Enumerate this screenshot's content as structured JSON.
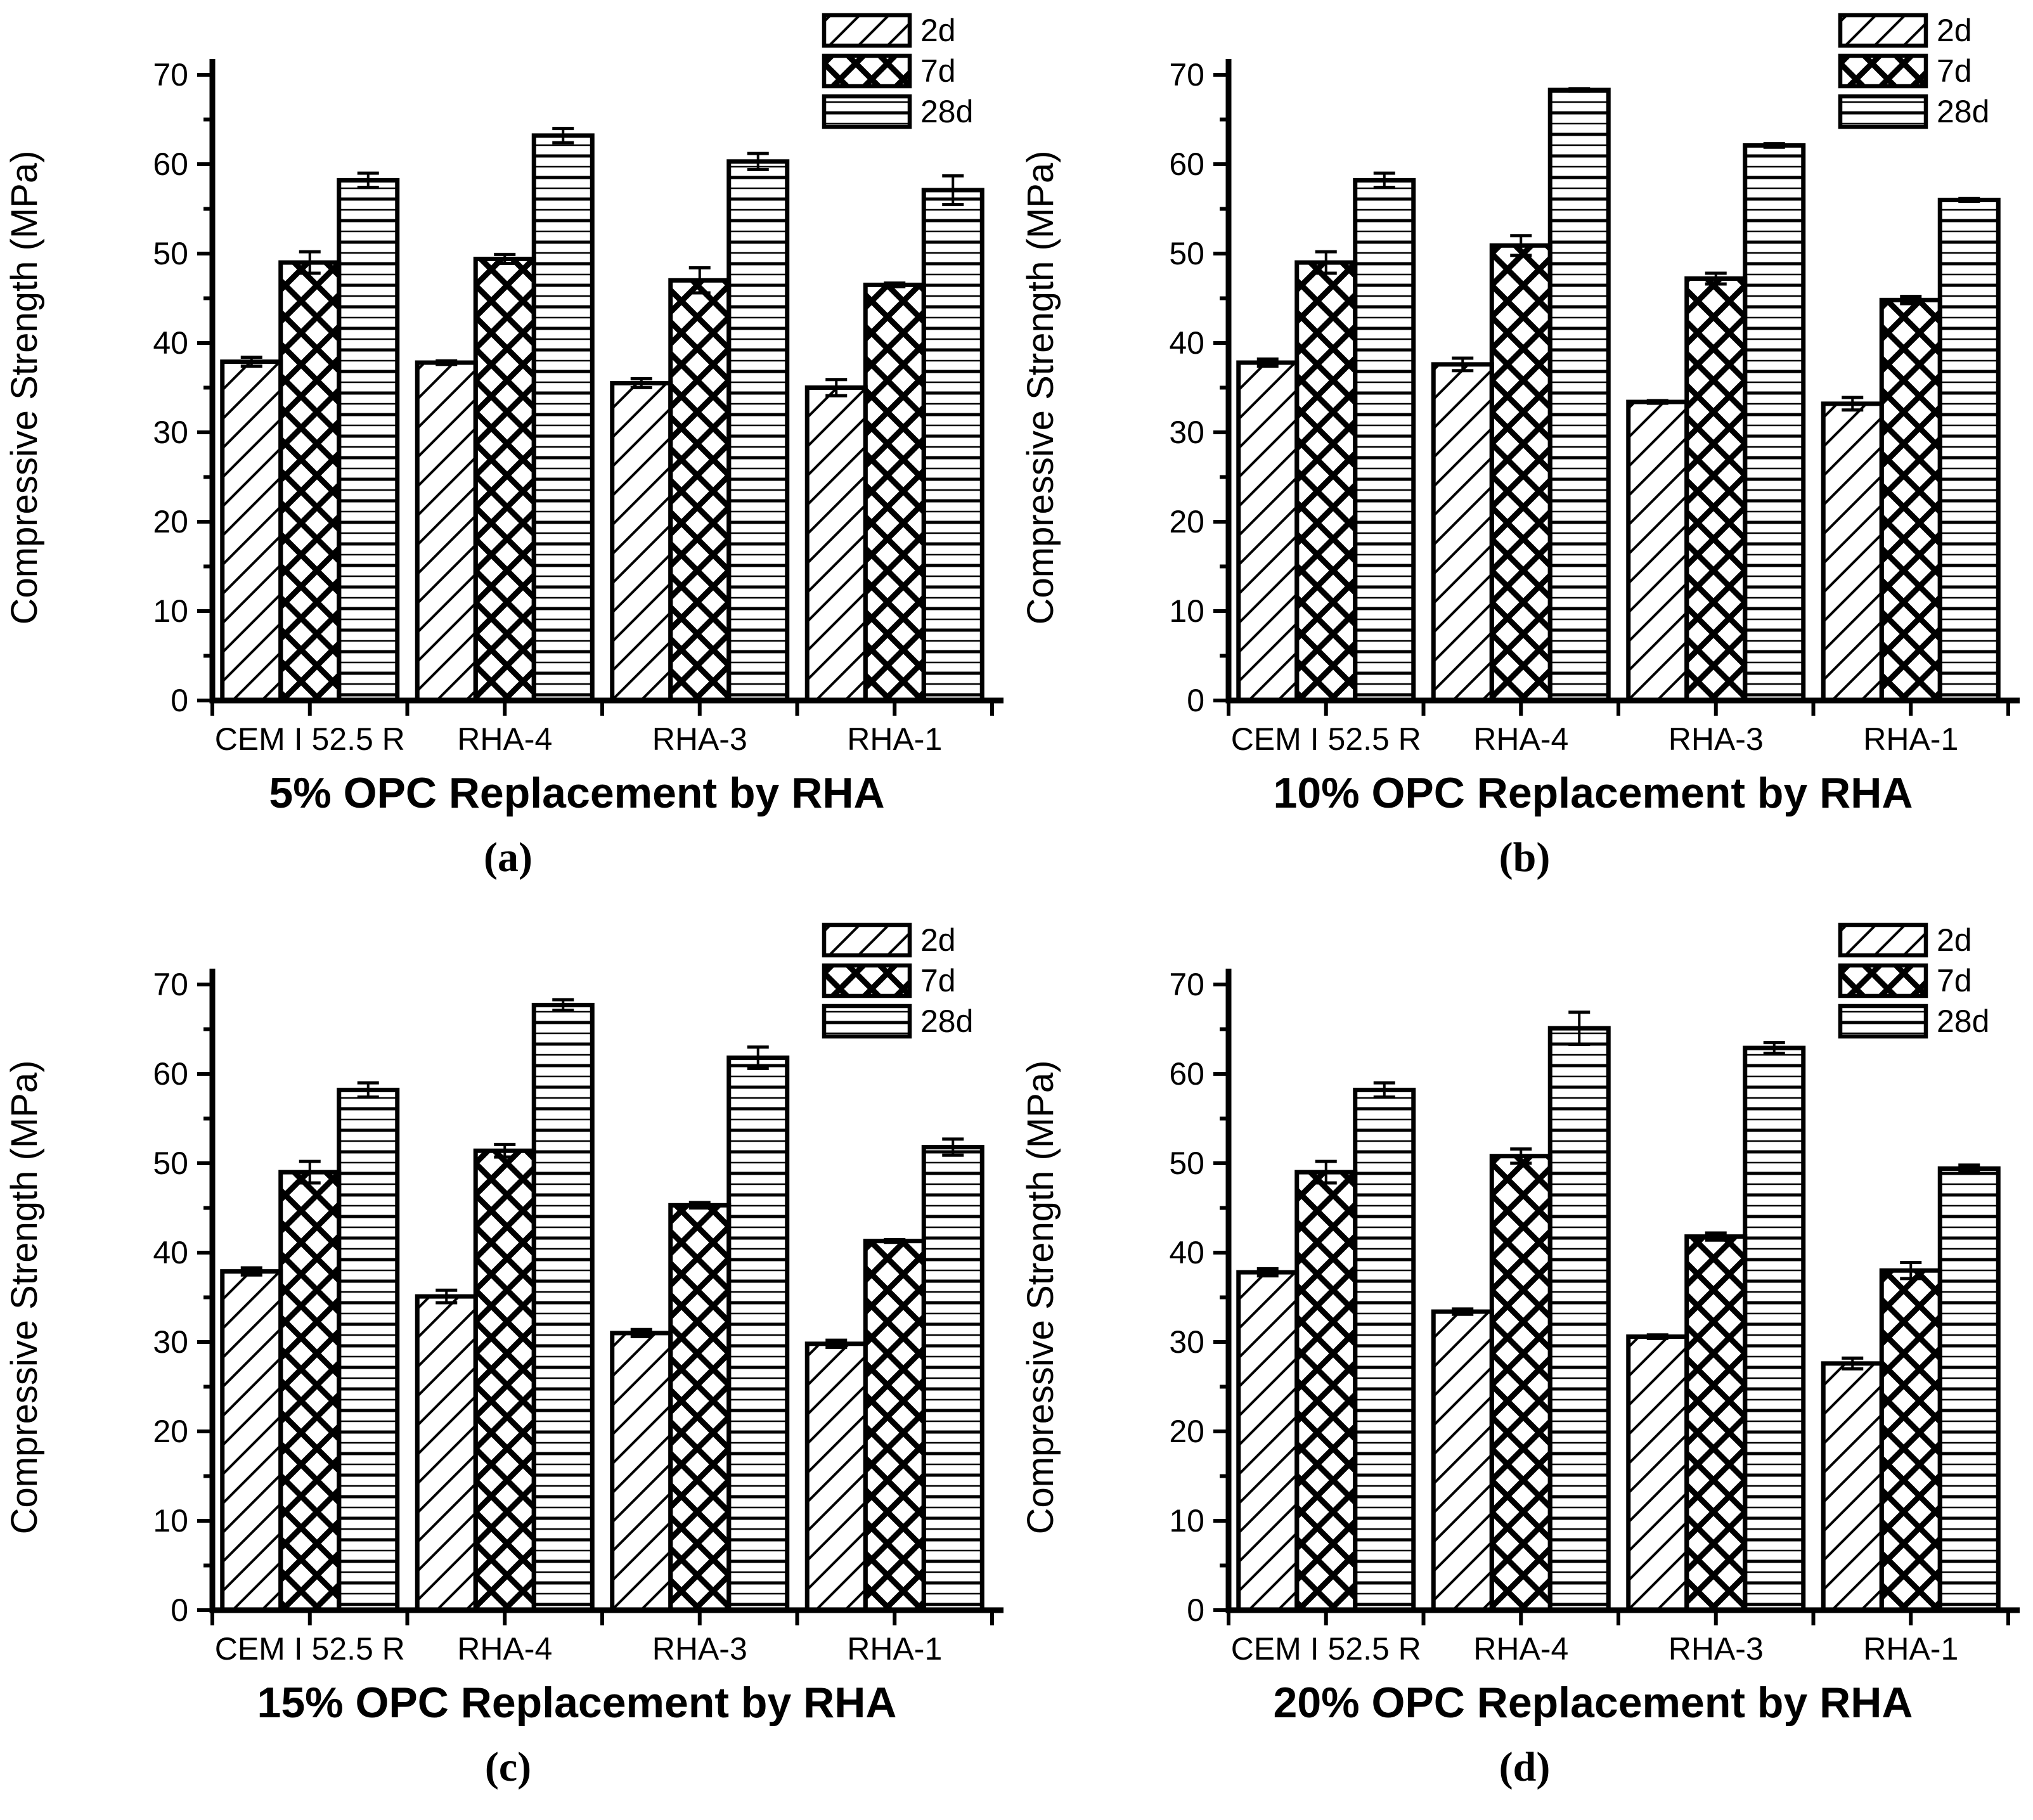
{
  "figure": {
    "background": "#ffffff",
    "foreground": "#000000",
    "ylabel": "Compressive Strength (MPa)",
    "categories": [
      "CEM I 52.5 R",
      "RHA-4",
      "RHA-3",
      "RHA-1"
    ],
    "legend_labels": [
      "2d",
      "7d",
      "28d"
    ],
    "legend_position": "top-right",
    "yticks": [
      0,
      10,
      20,
      30,
      40,
      50,
      60,
      70
    ],
    "ylim": [
      0,
      70
    ]
  },
  "chart_data": [
    {
      "type": "bar",
      "panel": "a",
      "letter": "(a)",
      "title": "5% OPC Replacement by RHA",
      "ylabel": "Compressive Strength (MPa)",
      "ylim": [
        0,
        70
      ],
      "yticks": [
        0,
        10,
        20,
        30,
        40,
        50,
        60,
        70
      ],
      "categories": [
        "CEM I 52.5 R",
        "RHA-4",
        "RHA-3",
        "RHA-1"
      ],
      "series": [
        {
          "name": "2d",
          "hatch": "diagonal",
          "values": [
            37.9,
            37.8,
            35.5,
            35.0
          ],
          "errors": [
            0.5,
            0.2,
            0.5,
            0.9
          ]
        },
        {
          "name": "7d",
          "hatch": "crosshatch",
          "values": [
            49.0,
            49.4,
            47.0,
            46.5
          ],
          "errors": [
            1.2,
            0.5,
            1.4,
            0.2
          ]
        },
        {
          "name": "28d",
          "hatch": "horizontal",
          "values": [
            58.2,
            63.2,
            60.3,
            57.1
          ],
          "errors": [
            0.8,
            0.8,
            0.9,
            1.6
          ]
        }
      ]
    },
    {
      "type": "bar",
      "panel": "b",
      "letter": "(b)",
      "title": "10% OPC Replacement by RHA",
      "ylabel": "Compressive Strength (MPa)",
      "ylim": [
        0,
        70
      ],
      "yticks": [
        0,
        10,
        20,
        30,
        40,
        50,
        60,
        70
      ],
      "categories": [
        "CEM I 52.5 R",
        "RHA-4",
        "RHA-3",
        "RHA-1"
      ],
      "series": [
        {
          "name": "2d",
          "hatch": "diagonal",
          "values": [
            37.8,
            37.6,
            33.4,
            33.2
          ],
          "errors": [
            0.4,
            0.7,
            0.15,
            0.7
          ]
        },
        {
          "name": "7d",
          "hatch": "crosshatch",
          "values": [
            49.0,
            50.9,
            47.2,
            44.8
          ],
          "errors": [
            1.2,
            1.1,
            0.6,
            0.4
          ]
        },
        {
          "name": "28d",
          "hatch": "horizontal",
          "values": [
            58.2,
            68.3,
            62.1,
            56.0
          ],
          "errors": [
            0.8,
            0.15,
            0.2,
            0.15
          ]
        }
      ]
    },
    {
      "type": "bar",
      "panel": "c",
      "letter": "(c)",
      "title": "15% OPC Replacement by RHA",
      "ylabel": "Compressive Strength (MPa)",
      "ylim": [
        0,
        70
      ],
      "yticks": [
        0,
        10,
        20,
        30,
        40,
        50,
        60,
        70
      ],
      "categories": [
        "CEM I 52.5 R",
        "RHA-4",
        "RHA-3",
        "RHA-1"
      ],
      "series": [
        {
          "name": "2d",
          "hatch": "diagonal",
          "values": [
            37.9,
            35.1,
            31.0,
            29.8
          ],
          "errors": [
            0.4,
            0.7,
            0.4,
            0.4
          ]
        },
        {
          "name": "7d",
          "hatch": "crosshatch",
          "values": [
            49.0,
            51.4,
            45.3,
            41.3
          ],
          "errors": [
            1.2,
            0.7,
            0.3,
            0.15
          ]
        },
        {
          "name": "28d",
          "hatch": "horizontal",
          "values": [
            58.2,
            67.7,
            61.8,
            51.8
          ],
          "errors": [
            0.8,
            0.6,
            1.2,
            0.9
          ]
        }
      ]
    },
    {
      "type": "bar",
      "panel": "d",
      "letter": "(d)",
      "title": "20% OPC Replacement by RHA",
      "ylabel": "Compressive Strength (MPa)",
      "ylim": [
        0,
        70
      ],
      "yticks": [
        0,
        10,
        20,
        30,
        40,
        50,
        60,
        70
      ],
      "categories": [
        "CEM I 52.5 R",
        "RHA-4",
        "RHA-3",
        "RHA-1"
      ],
      "series": [
        {
          "name": "2d",
          "hatch": "diagonal",
          "values": [
            37.8,
            33.4,
            30.6,
            27.6
          ],
          "errors": [
            0.4,
            0.3,
            0.2,
            0.6
          ]
        },
        {
          "name": "7d",
          "hatch": "crosshatch",
          "values": [
            49.0,
            50.8,
            41.8,
            38.0
          ],
          "errors": [
            1.2,
            0.8,
            0.4,
            0.9
          ]
        },
        {
          "name": "28d",
          "hatch": "horizontal",
          "values": [
            58.2,
            65.1,
            62.9,
            49.4
          ],
          "errors": [
            0.8,
            1.8,
            0.6,
            0.4
          ]
        }
      ]
    }
  ]
}
